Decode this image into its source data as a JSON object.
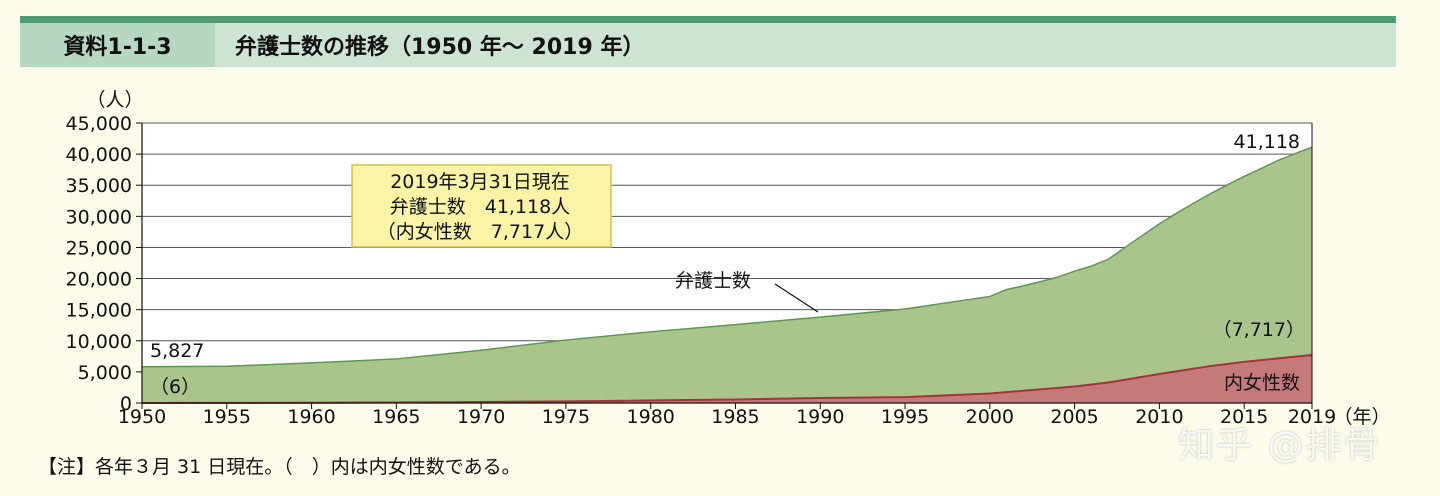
{
  "header": {
    "id": "資料1-1-3",
    "title": "弁護士数の推移（1950 年〜 2019 年）"
  },
  "colors": {
    "total_fill": "#a9c58b",
    "total_line": "#5f9650",
    "female_fill": "#c57a7a",
    "female_line": "#a8323c",
    "callout_bg": "#fbf3a6",
    "callout_border": "#d4c24a"
  },
  "chart_data": {
    "type": "area",
    "ylabel": "（人）",
    "xlabel": "（年）",
    "xlim": [
      1950,
      2019
    ],
    "ylim": [
      0,
      45000
    ],
    "yticks": [
      0,
      5000,
      10000,
      15000,
      20000,
      25000,
      30000,
      35000,
      40000,
      45000
    ],
    "ytick_labels": [
      "0",
      "5,000",
      "10,000",
      "15,000",
      "20,000",
      "25,000",
      "30,000",
      "35,000",
      "40,000",
      "45,000"
    ],
    "xticks": [
      1950,
      1955,
      1960,
      1965,
      1970,
      1975,
      1980,
      1985,
      1990,
      1995,
      2000,
      2005,
      2010,
      2015,
      2019
    ],
    "grid": true,
    "series": [
      {
        "name": "弁護士数",
        "x": [
          1950,
          1955,
          1960,
          1965,
          1970,
          1975,
          1980,
          1985,
          1990,
          1995,
          2000,
          2001,
          2002,
          2003,
          2004,
          2005,
          2006,
          2007,
          2008,
          2009,
          2010,
          2011,
          2012,
          2013,
          2014,
          2015,
          2016,
          2017,
          2018,
          2019
        ],
        "values": [
          5827,
          5899,
          6439,
          7082,
          8478,
          10115,
          11441,
          12604,
          13800,
          15108,
          17126,
          18243,
          18838,
          19508,
          20224,
          21185,
          22021,
          23119,
          25041,
          26930,
          28789,
          30485,
          32088,
          33624,
          35045,
          36415,
          37680,
          38980,
          40066,
          41118
        ]
      },
      {
        "name": "内女性数",
        "x": [
          1950,
          1955,
          1960,
          1965,
          1970,
          1975,
          1980,
          1985,
          1990,
          1995,
          2000,
          2005,
          2007,
          2010,
          2013,
          2015,
          2017,
          2019
        ],
        "values": [
          6,
          15,
          37,
          85,
          170,
          260,
          412,
          560,
          800,
          950,
          1530,
          2648,
          3300,
          4660,
          5936,
          6618,
          7171,
          7717
        ]
      }
    ],
    "annotations": {
      "start_total": "5,827",
      "start_female": "（6）",
      "end_total": "41,118",
      "end_female": "（7,717）",
      "series_label_total": "弁護士数",
      "series_label_female": "内女性数",
      "callout": [
        "2019年3月31日現在",
        "弁護士数　41,118人",
        "（内女性数　7,717人）"
      ]
    }
  },
  "note": "【注】各年３月 31 日現在。（　）内は内女性数である。",
  "watermark": "知乎 @排骨"
}
